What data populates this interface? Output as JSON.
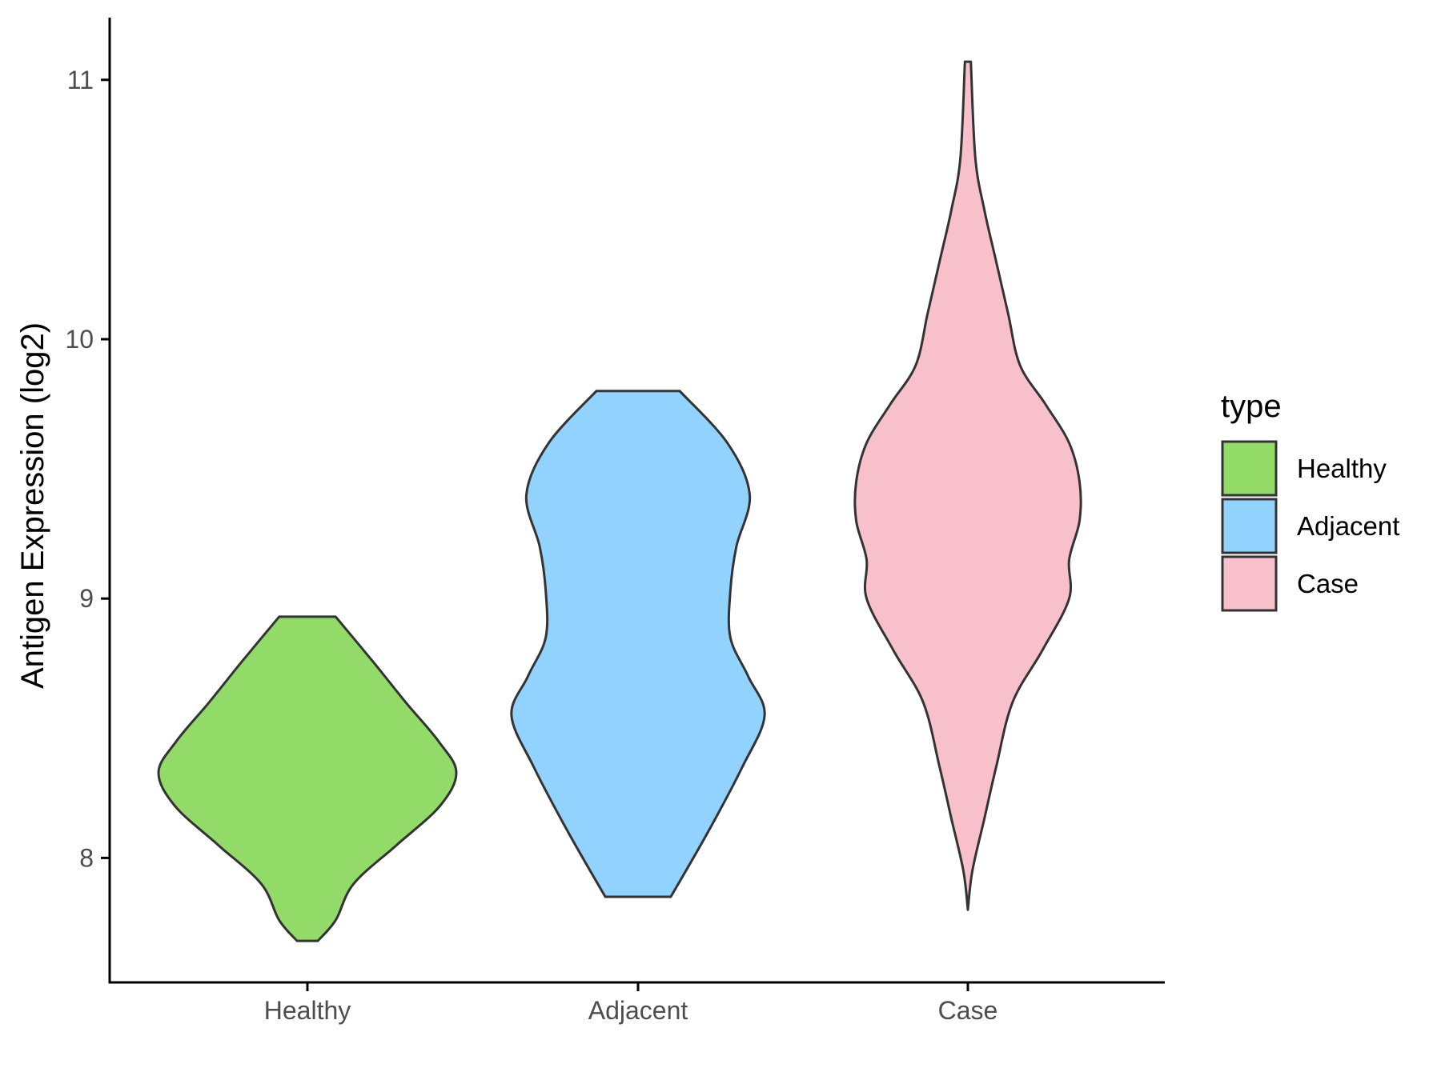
{
  "chart_data": {
    "type": "violin",
    "ylabel": "Antigen Expression (log2)",
    "xlabel": "",
    "categories": [
      "Healthy",
      "Adjacent",
      "Case"
    ],
    "ylim": [
      7.52,
      11.24
    ],
    "yticks": [
      8,
      9,
      10,
      11
    ],
    "grid": false,
    "legend": {
      "title": "type",
      "placement": "right",
      "entries": [
        "Healthy",
        "Adjacent",
        "Case"
      ]
    },
    "series": [
      {
        "category": "Healthy",
        "color": "#93db69",
        "min": 7.68,
        "max": 8.93,
        "profile": [
          [
            7.68,
            0.07
          ],
          [
            7.76,
            0.19
          ],
          [
            7.9,
            0.31
          ],
          [
            8.05,
            0.6
          ],
          [
            8.2,
            0.89
          ],
          [
            8.33,
            1.0
          ],
          [
            8.45,
            0.88
          ],
          [
            8.6,
            0.66
          ],
          [
            8.75,
            0.45
          ],
          [
            8.93,
            0.19
          ]
        ]
      },
      {
        "category": "Adjacent",
        "color": "#92d2ff",
        "min": 7.85,
        "max": 9.8,
        "profile": [
          [
            7.85,
            0.22
          ],
          [
            8.1,
            0.47
          ],
          [
            8.35,
            0.7
          ],
          [
            8.55,
            0.85
          ],
          [
            8.7,
            0.74
          ],
          [
            8.85,
            0.62
          ],
          [
            9.03,
            0.62
          ],
          [
            9.2,
            0.66
          ],
          [
            9.4,
            0.75
          ],
          [
            9.6,
            0.6
          ],
          [
            9.8,
            0.28
          ]
        ]
      },
      {
        "category": "Case",
        "color": "#f7c0cb",
        "min": 7.8,
        "max": 11.07,
        "profile": [
          [
            7.8,
            0.0
          ],
          [
            7.95,
            0.03
          ],
          [
            8.15,
            0.11
          ],
          [
            8.35,
            0.19
          ],
          [
            8.6,
            0.3
          ],
          [
            8.8,
            0.5
          ],
          [
            9.0,
            0.68
          ],
          [
            9.15,
            0.68
          ],
          [
            9.3,
            0.75
          ],
          [
            9.45,
            0.75
          ],
          [
            9.6,
            0.68
          ],
          [
            9.75,
            0.52
          ],
          [
            9.9,
            0.35
          ],
          [
            10.1,
            0.27
          ],
          [
            10.3,
            0.19
          ],
          [
            10.5,
            0.11
          ],
          [
            10.7,
            0.05
          ],
          [
            11.07,
            0.02
          ]
        ]
      }
    ]
  }
}
